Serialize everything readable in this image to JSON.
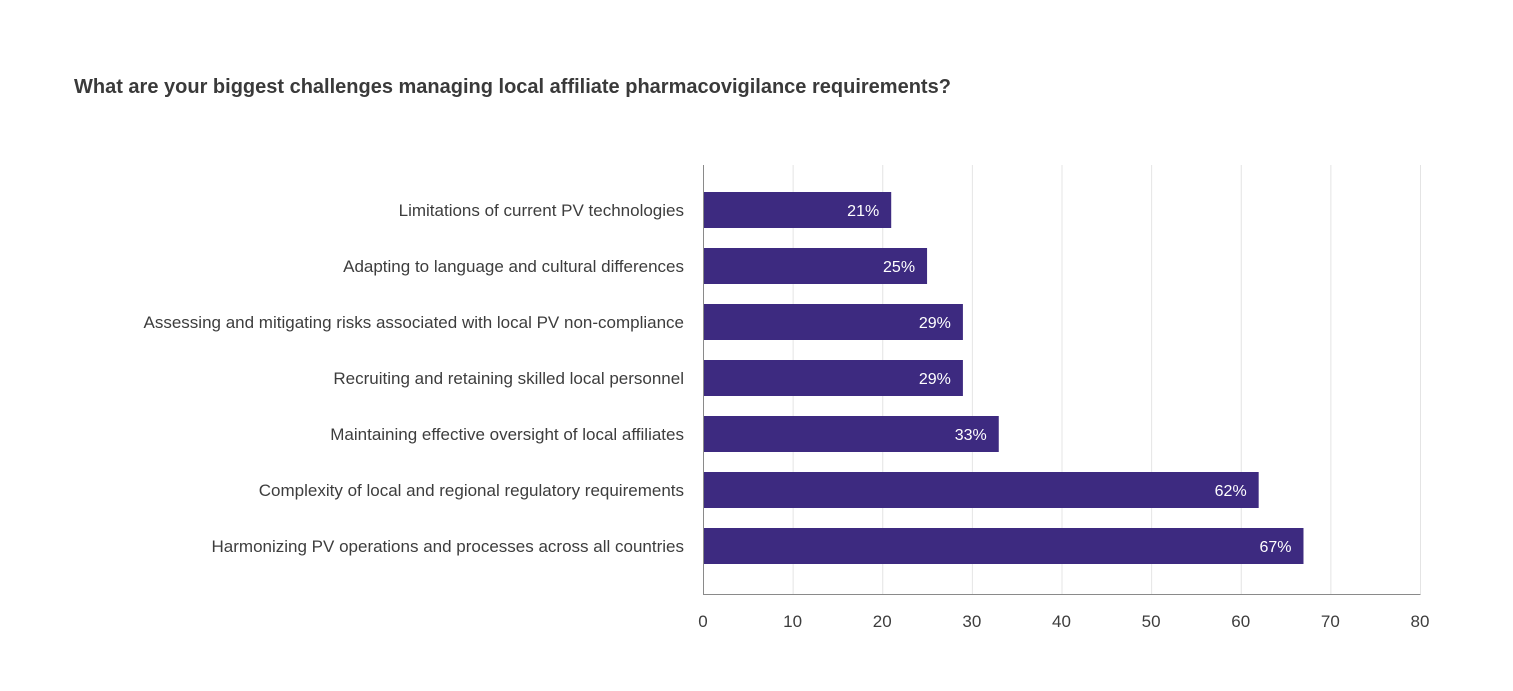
{
  "chart_data": {
    "type": "bar",
    "orientation": "horizontal",
    "title": "What are your biggest challenges managing local affiliate pharmacovigilance requirements?",
    "xlabel": "",
    "ylabel": "",
    "categories": [
      "Limitations of current PV technologies",
      "Adapting to language and cultural differences",
      "Assessing and mitigating risks associated with local PV non-compliance",
      "Recruiting and retaining skilled local personnel",
      "Maintaining effective oversight of local affiliates",
      "Complexity of local and regional regulatory requirements",
      "Harmonizing PV operations and processes across all countries"
    ],
    "values": [
      21,
      25,
      29,
      29,
      33,
      62,
      67
    ],
    "data_labels": [
      "21%",
      "25%",
      "29%",
      "29%",
      "33%",
      "62%",
      "67%"
    ],
    "xlim": [
      0,
      80
    ],
    "xticks": [
      0,
      10,
      20,
      30,
      40,
      50,
      60,
      70,
      80
    ],
    "grid": "vertical",
    "legend": "none",
    "bar_color": "#3d2a80"
  }
}
